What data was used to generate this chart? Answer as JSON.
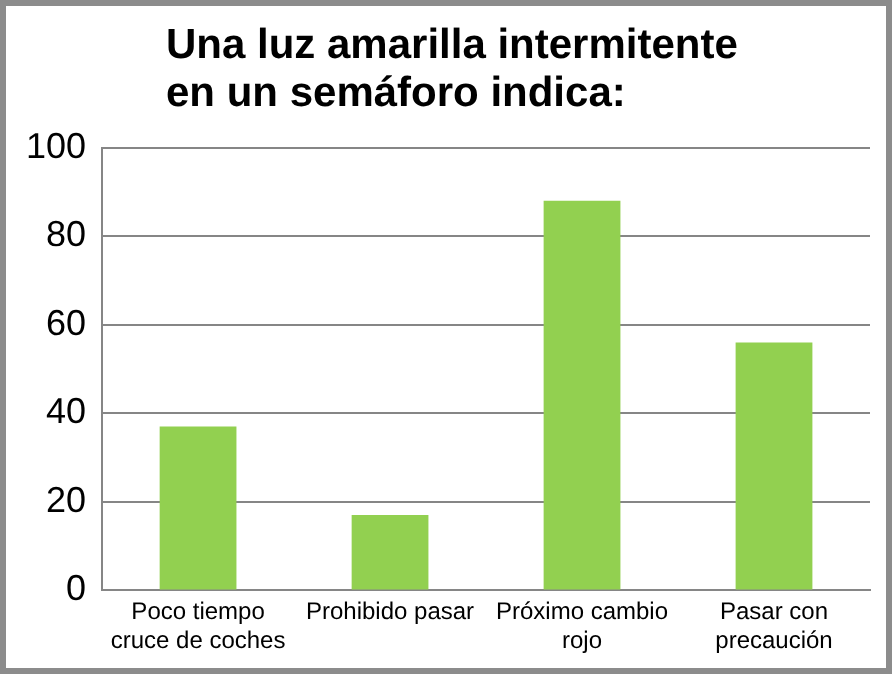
{
  "chart_data": {
    "type": "bar",
    "title": "Una luz amarilla intermitente en un semáforo indica:",
    "categories": [
      "Poco tiempo cruce de coches",
      "Prohibido pasar",
      "Próximo cambio rojo",
      "Pasar con precaución"
    ],
    "values": [
      37,
      17,
      88,
      56
    ],
    "color": "#92d050",
    "ylim": [
      0,
      100
    ],
    "yticks": [
      0,
      20,
      40,
      60,
      80,
      100
    ],
    "grid": "y",
    "legend": false
  }
}
